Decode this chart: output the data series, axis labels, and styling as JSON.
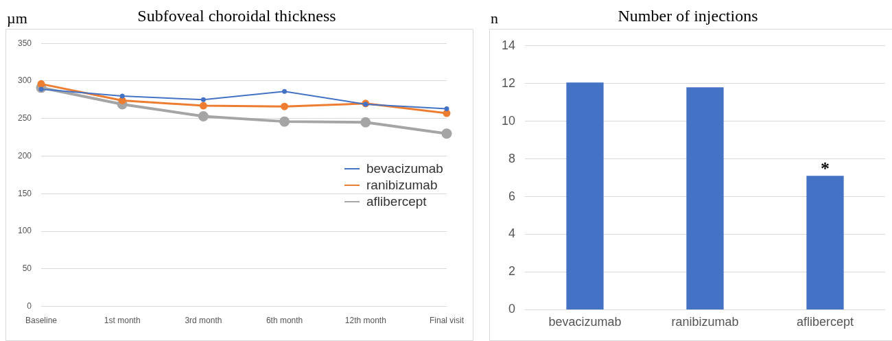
{
  "chart_data": [
    {
      "type": "line",
      "title": "Subfoveal choroidal thickness",
      "ylabel": "µm",
      "categories": [
        "Baseline",
        "1st month",
        "3rd month",
        "6th month",
        "12th month",
        "Final visit"
      ],
      "series": [
        {
          "name": "bevacizumab",
          "color": "#4472c4",
          "values": [
            289,
            280,
            275,
            286,
            269,
            263
          ]
        },
        {
          "name": "ranibizumab",
          "color": "#ed7d31",
          "values": [
            296,
            274,
            267,
            266,
            270,
            257
          ]
        },
        {
          "name": "aflibercept",
          "color": "#a5a5a5",
          "values": [
            291,
            269,
            253,
            246,
            245,
            230
          ]
        }
      ],
      "ylim": [
        0,
        350
      ],
      "yticks": [
        0,
        50,
        100,
        150,
        200,
        250,
        300,
        350
      ],
      "grid": "y",
      "legend": "right",
      "marker": "circle"
    },
    {
      "type": "bar",
      "title": "Number of injections",
      "ylabel": "n",
      "categories": [
        "bevacizumab",
        "ranibizumab",
        "aflibercept"
      ],
      "values": [
        12.05,
        11.8,
        7.1
      ],
      "color": "#4472c4",
      "ylim": [
        0,
        14
      ],
      "yticks": [
        0,
        2,
        4,
        6,
        8,
        10,
        12,
        14
      ],
      "grid": "y",
      "annotations": [
        {
          "text": "*",
          "x": "aflibercept",
          "y": 7.1
        }
      ]
    }
  ]
}
